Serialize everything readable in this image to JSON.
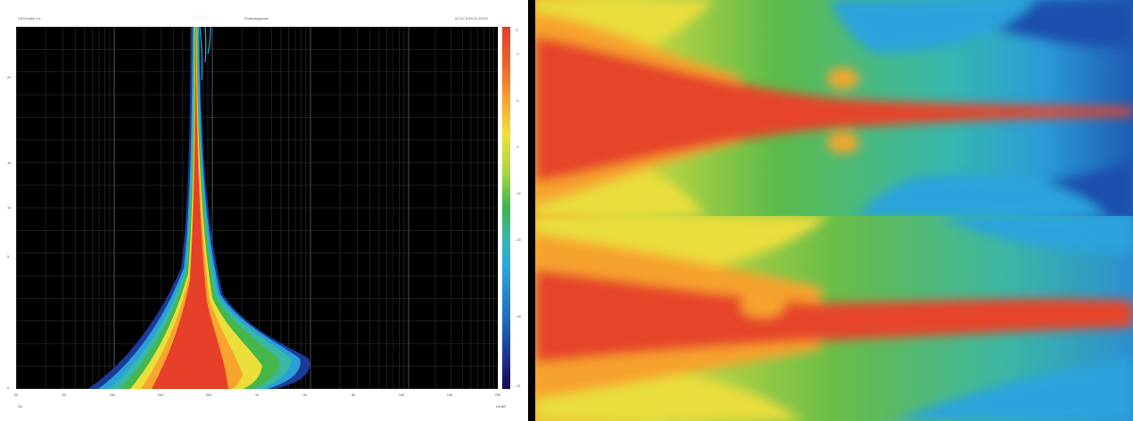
{
  "left_chart": {
    "header_left": "CEA Audio 3.x",
    "header_center": "Polardiagramm",
    "header_right": "01.01.2015 01:23:45",
    "y_ticks": [
      "20",
      "15",
      "10",
      "5",
      "0"
    ],
    "x_ticks": [
      "20",
      "50",
      "100",
      "200",
      "500",
      "1k",
      "2k",
      "5k",
      "10k",
      "15k",
      "20k"
    ],
    "colorbar_ticks": [
      "0",
      "-3",
      "-6",
      "-9",
      "-12",
      "-15",
      "-18",
      "-21"
    ],
    "footer_left": "Hz",
    "footer_right": "Hz/dB"
  },
  "chart_data": [
    {
      "type": "heatmap",
      "title": "",
      "xlabel": "",
      "ylabel": "",
      "x_scale": "log",
      "grid": true,
      "description_values": "polar directivity response: wide spread at low frequencies narrowing to a thin beam at high frequencies",
      "colorbar": {
        "min": -21,
        "max": 0,
        "colors": [
          "#e63b2a",
          "#f8b02e",
          "#efe03a",
          "#3bb54a",
          "#2aa8e0",
          "#1b2f8f"
        ]
      }
    },
    {
      "type": "heatmap",
      "title": "",
      "xlabel": "",
      "ylabel": "",
      "note": "two stacked directivity maps (horizontal and vertical), no axes printed"
    }
  ]
}
